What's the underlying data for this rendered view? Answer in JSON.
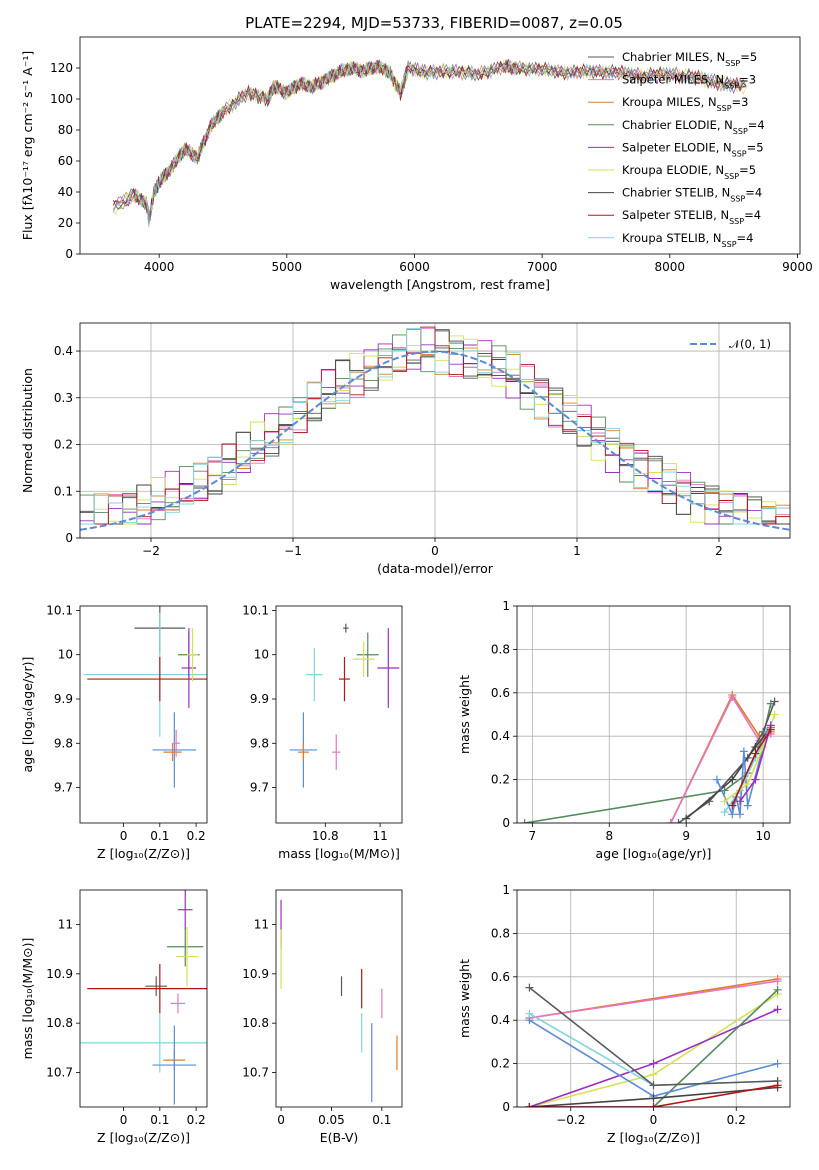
{
  "chart_data": [
    {
      "id": "spectrum",
      "type": "line",
      "title": "PLATE=2294, MJD=53733, FIBERID=0087, z=0.05",
      "xlabel": "wavelength [Angstrom, rest frame]",
      "ylabel": "Flux [fλ10⁻¹⁷ erg cm⁻² s⁻¹ A⁻¹]",
      "xlim": [
        3380,
        9020
      ],
      "ylim": [
        0,
        140
      ],
      "xticks": [
        4000,
        5000,
        6000,
        7000,
        8000,
        9000
      ],
      "yticks": [
        0,
        20,
        40,
        60,
        80,
        100,
        120
      ],
      "x": [
        3640,
        3800,
        3900,
        3920,
        3960,
        4000,
        4100,
        4200,
        4300,
        4400,
        4500,
        4700,
        4850,
        4900,
        5000,
        5100,
        5200,
        5300,
        5400,
        5500,
        5600,
        5700,
        5800,
        5890,
        5950,
        6100,
        6300,
        6500,
        6700,
        6800,
        7000,
        7200,
        7400,
        7600,
        7800,
        8000,
        8200,
        8400,
        8600
      ],
      "y": [
        30,
        38,
        33,
        22,
        40,
        46,
        56,
        68,
        62,
        82,
        92,
        104,
        100,
        108,
        104,
        110,
        108,
        112,
        117,
        120,
        118,
        121,
        118,
        104,
        120,
        117,
        118,
        116,
        121,
        120,
        119,
        117,
        118,
        117,
        115,
        116,
        114,
        110,
        108
      ],
      "series": [
        {
          "name": "Chabrier MILES, N",
          "sub": "SSP",
          "suffix": "=5",
          "color": "#5a5a5a"
        },
        {
          "name": "Salpeter MILES, N",
          "sub": "SSP",
          "suffix": "=3",
          "color": "#e377c2"
        },
        {
          "name": "Kroupa MILES, N",
          "sub": "SSP",
          "suffix": "=3",
          "color": "#e07b28"
        },
        {
          "name": "Chabrier ELODIE, N",
          "sub": "SSP",
          "suffix": "=4",
          "color": "#548b5e"
        },
        {
          "name": "Salpeter ELODIE, N",
          "sub": "SSP",
          "suffix": "=5",
          "color": "#9b2fbf"
        },
        {
          "name": "Kroupa ELODIE, N",
          "sub": "SSP",
          "suffix": "=5",
          "color": "#d4e157"
        },
        {
          "name": "Chabrier STELIB, N",
          "sub": "SSP",
          "suffix": "=4",
          "color": "#444444"
        },
        {
          "name": "Salpeter STELIB, N",
          "sub": "SSP",
          "suffix": "=4",
          "color": "#b01818"
        },
        {
          "name": "Kroupa STELIB, N",
          "sub": "SSP",
          "suffix": "=4",
          "color": "#7fd6dd"
        }
      ]
    },
    {
      "id": "residuals",
      "type": "line",
      "xlabel": "(data-model)/error",
      "ylabel": "Normed distribution",
      "xlim": [
        -2.5,
        2.5
      ],
      "ylim": [
        0,
        0.46
      ],
      "xticks": [
        -2,
        -1,
        0,
        1,
        2
      ],
      "yticks": [
        0.0,
        0.1,
        0.2,
        0.3,
        0.4
      ],
      "grid": true,
      "legend": "𝒩(0, 1)",
      "normal_color": "#5b8bd6",
      "bin_width": 0.1
    },
    {
      "id": "age_vs_Z",
      "type": "scatter",
      "xlabel": "Z [log₁₀(Z/Z⊙)]",
      "ylabel": "age  [log₁₀(age/yr)]",
      "xlim": [
        -0.12,
        0.23
      ],
      "ylim": [
        9.62,
        10.11
      ],
      "xticks": [
        0.0,
        0.1,
        0.2
      ],
      "yticks": [
        9.7,
        9.8,
        9.9,
        10.0,
        10.1
      ],
      "points": [
        {
          "color": "#5a5a5a",
          "x": 0.1,
          "y": 10.06,
          "xerr": 0.07,
          "yerr": 0.055
        },
        {
          "color": "#7fd6dd",
          "x": 0.1,
          "y": 9.955,
          "xerr": 0.21,
          "yerr": 0.14
        },
        {
          "color": "#b01818",
          "x": 0.1,
          "y": 9.945,
          "xerr": 0.2,
          "yerr": 0.05
        },
        {
          "color": "#548b5e",
          "x": 0.18,
          "y": 10.0,
          "xerr": 0.03,
          "yerr": 0.05
        },
        {
          "color": "#9b2fbf",
          "x": 0.18,
          "y": 9.97,
          "xerr": 0.02,
          "yerr": 0.09
        },
        {
          "color": "#d4e157",
          "x": 0.19,
          "y": 10.0,
          "xerr": 0.015,
          "yerr": 0.06
        },
        {
          "color": "#5b8bd6",
          "x": 0.14,
          "y": 9.785,
          "xerr": 0.06,
          "yerr": 0.085
        },
        {
          "color": "#e07b28",
          "x": 0.135,
          "y": 9.78,
          "xerr": 0.025,
          "yerr": 0.02
        },
        {
          "color": "#e377c2",
          "x": 0.145,
          "y": 9.8,
          "xerr": 0.01,
          "yerr": 0.03
        }
      ]
    },
    {
      "id": "age_vs_mass",
      "type": "scatter",
      "xlabel": "mass [log₁₀(M/M⊙)]",
      "xlim": [
        10.62,
        11.08
      ],
      "ylim": [
        9.62,
        10.11
      ],
      "xticks": [
        10.8,
        11.0
      ],
      "yticks": [
        9.7,
        9.8,
        9.9,
        10.0,
        10.1
      ],
      "points": [
        {
          "color": "#5a5a5a",
          "x": 10.875,
          "y": 10.06,
          "xerr": 0.01,
          "yerr": 0.01
        },
        {
          "color": "#7fd6dd",
          "x": 10.76,
          "y": 9.955,
          "xerr": 0.03,
          "yerr": 0.06
        },
        {
          "color": "#b01818",
          "x": 10.87,
          "y": 9.945,
          "xerr": 0.02,
          "yerr": 0.05
        },
        {
          "color": "#548b5e",
          "x": 10.955,
          "y": 10.0,
          "xerr": 0.04,
          "yerr": 0.05
        },
        {
          "color": "#9b2fbf",
          "x": 11.03,
          "y": 9.97,
          "xerr": 0.04,
          "yerr": 0.09
        },
        {
          "color": "#d4e157",
          "x": 10.94,
          "y": 9.99,
          "xerr": 0.04,
          "yerr": 0.04
        },
        {
          "color": "#5b8bd6",
          "x": 10.72,
          "y": 9.785,
          "xerr": 0.05,
          "yerr": 0.085
        },
        {
          "color": "#e07b28",
          "x": 10.72,
          "y": 9.78,
          "xerr": 0.02,
          "yerr": 0.02
        },
        {
          "color": "#e377c2",
          "x": 10.84,
          "y": 9.78,
          "xerr": 0.015,
          "yerr": 0.04
        }
      ]
    },
    {
      "id": "weight_vs_age",
      "type": "line",
      "xlabel": "age  [log₁₀(age/yr)]",
      "ylabel": "mass weight",
      "xlim": [
        6.8,
        10.35
      ],
      "ylim": [
        0,
        1.0
      ],
      "xticks": [
        7,
        8,
        9,
        10
      ],
      "yticks": [
        0.0,
        0.2,
        0.4,
        0.6,
        0.8,
        1.0
      ],
      "grid": true,
      "lines": [
        {
          "color": "#548b5e",
          "x": [
            6.9,
            9.5,
            9.8,
            10.0,
            10.1
          ],
          "y": [
            0.0,
            0.15,
            0.23,
            0.4,
            0.55
          ]
        },
        {
          "color": "#e07b28",
          "x": [
            8.8,
            9.6,
            9.95,
            10.1
          ],
          "y": [
            0.0,
            0.59,
            0.4,
            0.42
          ]
        },
        {
          "color": "#e377c2",
          "x": [
            8.8,
            9.6,
            9.95,
            10.1
          ],
          "y": [
            0.0,
            0.58,
            0.38,
            0.41
          ]
        },
        {
          "color": "#5a5a5a",
          "x": [
            8.9,
            9.3,
            9.8,
            10.0,
            10.15
          ],
          "y": [
            0.0,
            0.1,
            0.3,
            0.42,
            0.56
          ]
        },
        {
          "color": "#444444",
          "x": [
            9.0,
            9.6,
            9.9,
            10.1
          ],
          "y": [
            0.02,
            0.2,
            0.35,
            0.44
          ]
        },
        {
          "color": "#5b8bd6",
          "x": [
            9.4,
            9.6,
            9.65,
            9.7,
            9.75,
            9.8,
            10.05,
            10.1
          ],
          "y": [
            0.2,
            0.04,
            0.12,
            0.04,
            0.33,
            0.08,
            0.42,
            0.44
          ]
        },
        {
          "color": "#7fd6dd",
          "x": [
            9.5,
            9.7,
            9.9,
            10.1
          ],
          "y": [
            0.05,
            0.15,
            0.3,
            0.43
          ]
        },
        {
          "color": "#d4e157",
          "x": [
            9.5,
            9.8,
            10.0,
            10.15
          ],
          "y": [
            0.1,
            0.18,
            0.35,
            0.5
          ]
        },
        {
          "color": "#9b2fbf",
          "x": [
            9.7,
            9.9,
            10.1
          ],
          "y": [
            0.1,
            0.2,
            0.45
          ]
        },
        {
          "color": "#b01818",
          "x": [
            9.6,
            9.9,
            10.1
          ],
          "y": [
            0.08,
            0.32,
            0.43
          ]
        }
      ]
    },
    {
      "id": "mass_vs_Z",
      "type": "scatter",
      "xlabel": "Z [log₁₀(Z/Z⊙)]",
      "ylabel": "mass [log₁₀(M/M⊙)]",
      "xlim": [
        -0.12,
        0.23
      ],
      "ylim": [
        10.63,
        11.07
      ],
      "xticks": [
        0.0,
        0.1,
        0.2
      ],
      "yticks": [
        10.7,
        10.8,
        10.9,
        11.0
      ],
      "points": [
        {
          "color": "#9b2fbf",
          "x": 0.17,
          "y": 11.03,
          "xerr": 0.02,
          "yerr": 0.04
        },
        {
          "color": "#548b5e",
          "x": 0.17,
          "y": 10.955,
          "xerr": 0.05,
          "yerr": 0.04
        },
        {
          "color": "#d4e157",
          "x": 0.175,
          "y": 10.935,
          "xerr": 0.03,
          "yerr": 0.06
        },
        {
          "color": "#5a5a5a",
          "x": 0.09,
          "y": 10.875,
          "xerr": 0.03,
          "yerr": 0.02
        },
        {
          "color": "#b01818",
          "x": 0.1,
          "y": 10.87,
          "xerr": 0.2,
          "yerr": 0.05
        },
        {
          "color": "#e377c2",
          "x": 0.15,
          "y": 10.84,
          "xerr": 0.02,
          "yerr": 0.02
        },
        {
          "color": "#7fd6dd",
          "x": 0.1,
          "y": 10.76,
          "xerr": 0.22,
          "yerr": 0.06
        },
        {
          "color": "#e07b28",
          "x": 0.14,
          "y": 10.725,
          "xerr": 0.03,
          "yerr": 0.02
        },
        {
          "color": "#5b8bd6",
          "x": 0.14,
          "y": 10.715,
          "xerr": 0.06,
          "yerr": 0.08
        }
      ]
    },
    {
      "id": "mass_vs_ebv",
      "type": "scatter",
      "xlabel": "E(B-V)",
      "xlim": [
        -0.005,
        0.12
      ],
      "ylim": [
        10.63,
        11.07
      ],
      "xticks": [
        0.0,
        0.05,
        0.1
      ],
      "yticks": [
        10.7,
        10.8,
        10.9,
        11.0
      ],
      "points": [
        {
          "color": "#9b2fbf",
          "x": 0.0,
          "y": 11.0,
          "xerr": 0,
          "yerr": 0.05
        },
        {
          "color": "#d4e157",
          "x": 0.0,
          "y": 10.93,
          "xerr": 0,
          "yerr": 0.06
        },
        {
          "color": "#5a5a5a",
          "x": 0.06,
          "y": 10.875,
          "xerr": 0,
          "yerr": 0.02
        },
        {
          "color": "#b01818",
          "x": 0.08,
          "y": 10.87,
          "xerr": 0,
          "yerr": 0.04
        },
        {
          "color": "#e377c2",
          "x": 0.1,
          "y": 10.84,
          "xerr": 0,
          "yerr": 0.03
        },
        {
          "color": "#7fd6dd",
          "x": 0.08,
          "y": 10.78,
          "xerr": 0,
          "yerr": 0.04
        },
        {
          "color": "#5b8bd6",
          "x": 0.09,
          "y": 10.72,
          "xerr": 0,
          "yerr": 0.08
        },
        {
          "color": "#e07b28",
          "x": 0.115,
          "y": 10.74,
          "xerr": 0,
          "yerr": 0.035
        }
      ]
    },
    {
      "id": "weight_vs_Z",
      "type": "line",
      "xlabel": "Z [log₁₀(Z/Z⊙)]",
      "ylabel": "mass weight",
      "xlim": [
        -0.33,
        0.33
      ],
      "ylim": [
        0,
        1.0
      ],
      "xticks": [
        -0.2,
        0.0,
        0.2
      ],
      "yticks": [
        0.0,
        0.2,
        0.4,
        0.6,
        0.8,
        1.0
      ],
      "grid": true,
      "lines": [
        {
          "color": "#e07b28",
          "x": [
            -0.3,
            0.3
          ],
          "y": [
            0.41,
            0.59
          ]
        },
        {
          "color": "#e377c2",
          "x": [
            -0.3,
            0.3
          ],
          "y": [
            0.41,
            0.58
          ]
        },
        {
          "color": "#d4e157",
          "x": [
            -0.3,
            0.0,
            0.3
          ],
          "y": [
            0.0,
            0.15,
            0.52
          ]
        },
        {
          "color": "#9b2fbf",
          "x": [
            -0.3,
            0.0,
            0.3
          ],
          "y": [
            0.0,
            0.2,
            0.45
          ]
        },
        {
          "color": "#548b5e",
          "x": [
            -0.3,
            0.0,
            0.3
          ],
          "y": [
            0.0,
            0.0,
            0.54
          ]
        },
        {
          "color": "#5b8bd6",
          "x": [
            -0.3,
            0.0,
            0.3
          ],
          "y": [
            0.4,
            0.05,
            0.2
          ]
        },
        {
          "color": "#7fd6dd",
          "x": [
            -0.3,
            0.0,
            0.3
          ],
          "y": [
            0.43,
            0.1,
            0.12
          ]
        },
        {
          "color": "#444444",
          "x": [
            -0.3,
            0.0,
            0.3
          ],
          "y": [
            0.0,
            0.04,
            0.09
          ]
        },
        {
          "color": "#5a5a5a",
          "x": [
            -0.3,
            0.0,
            0.3
          ],
          "y": [
            0.55,
            0.1,
            0.12
          ]
        },
        {
          "color": "#b01818",
          "x": [
            -0.3,
            0.0,
            0.3
          ],
          "y": [
            0.0,
            0.0,
            0.1
          ]
        }
      ]
    }
  ]
}
